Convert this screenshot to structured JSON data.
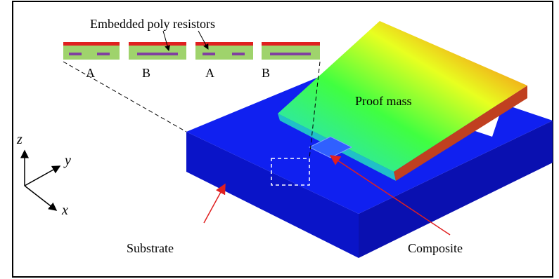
{
  "title": "Embedded poly resistors",
  "sections": [
    "A",
    "B",
    "A",
    "B"
  ],
  "parts": {
    "proof_mass": "Proof mass",
    "substrate": "Substrate",
    "composite": "Composite"
  },
  "axes": {
    "z": "z",
    "y": "y",
    "x": "x"
  }
}
